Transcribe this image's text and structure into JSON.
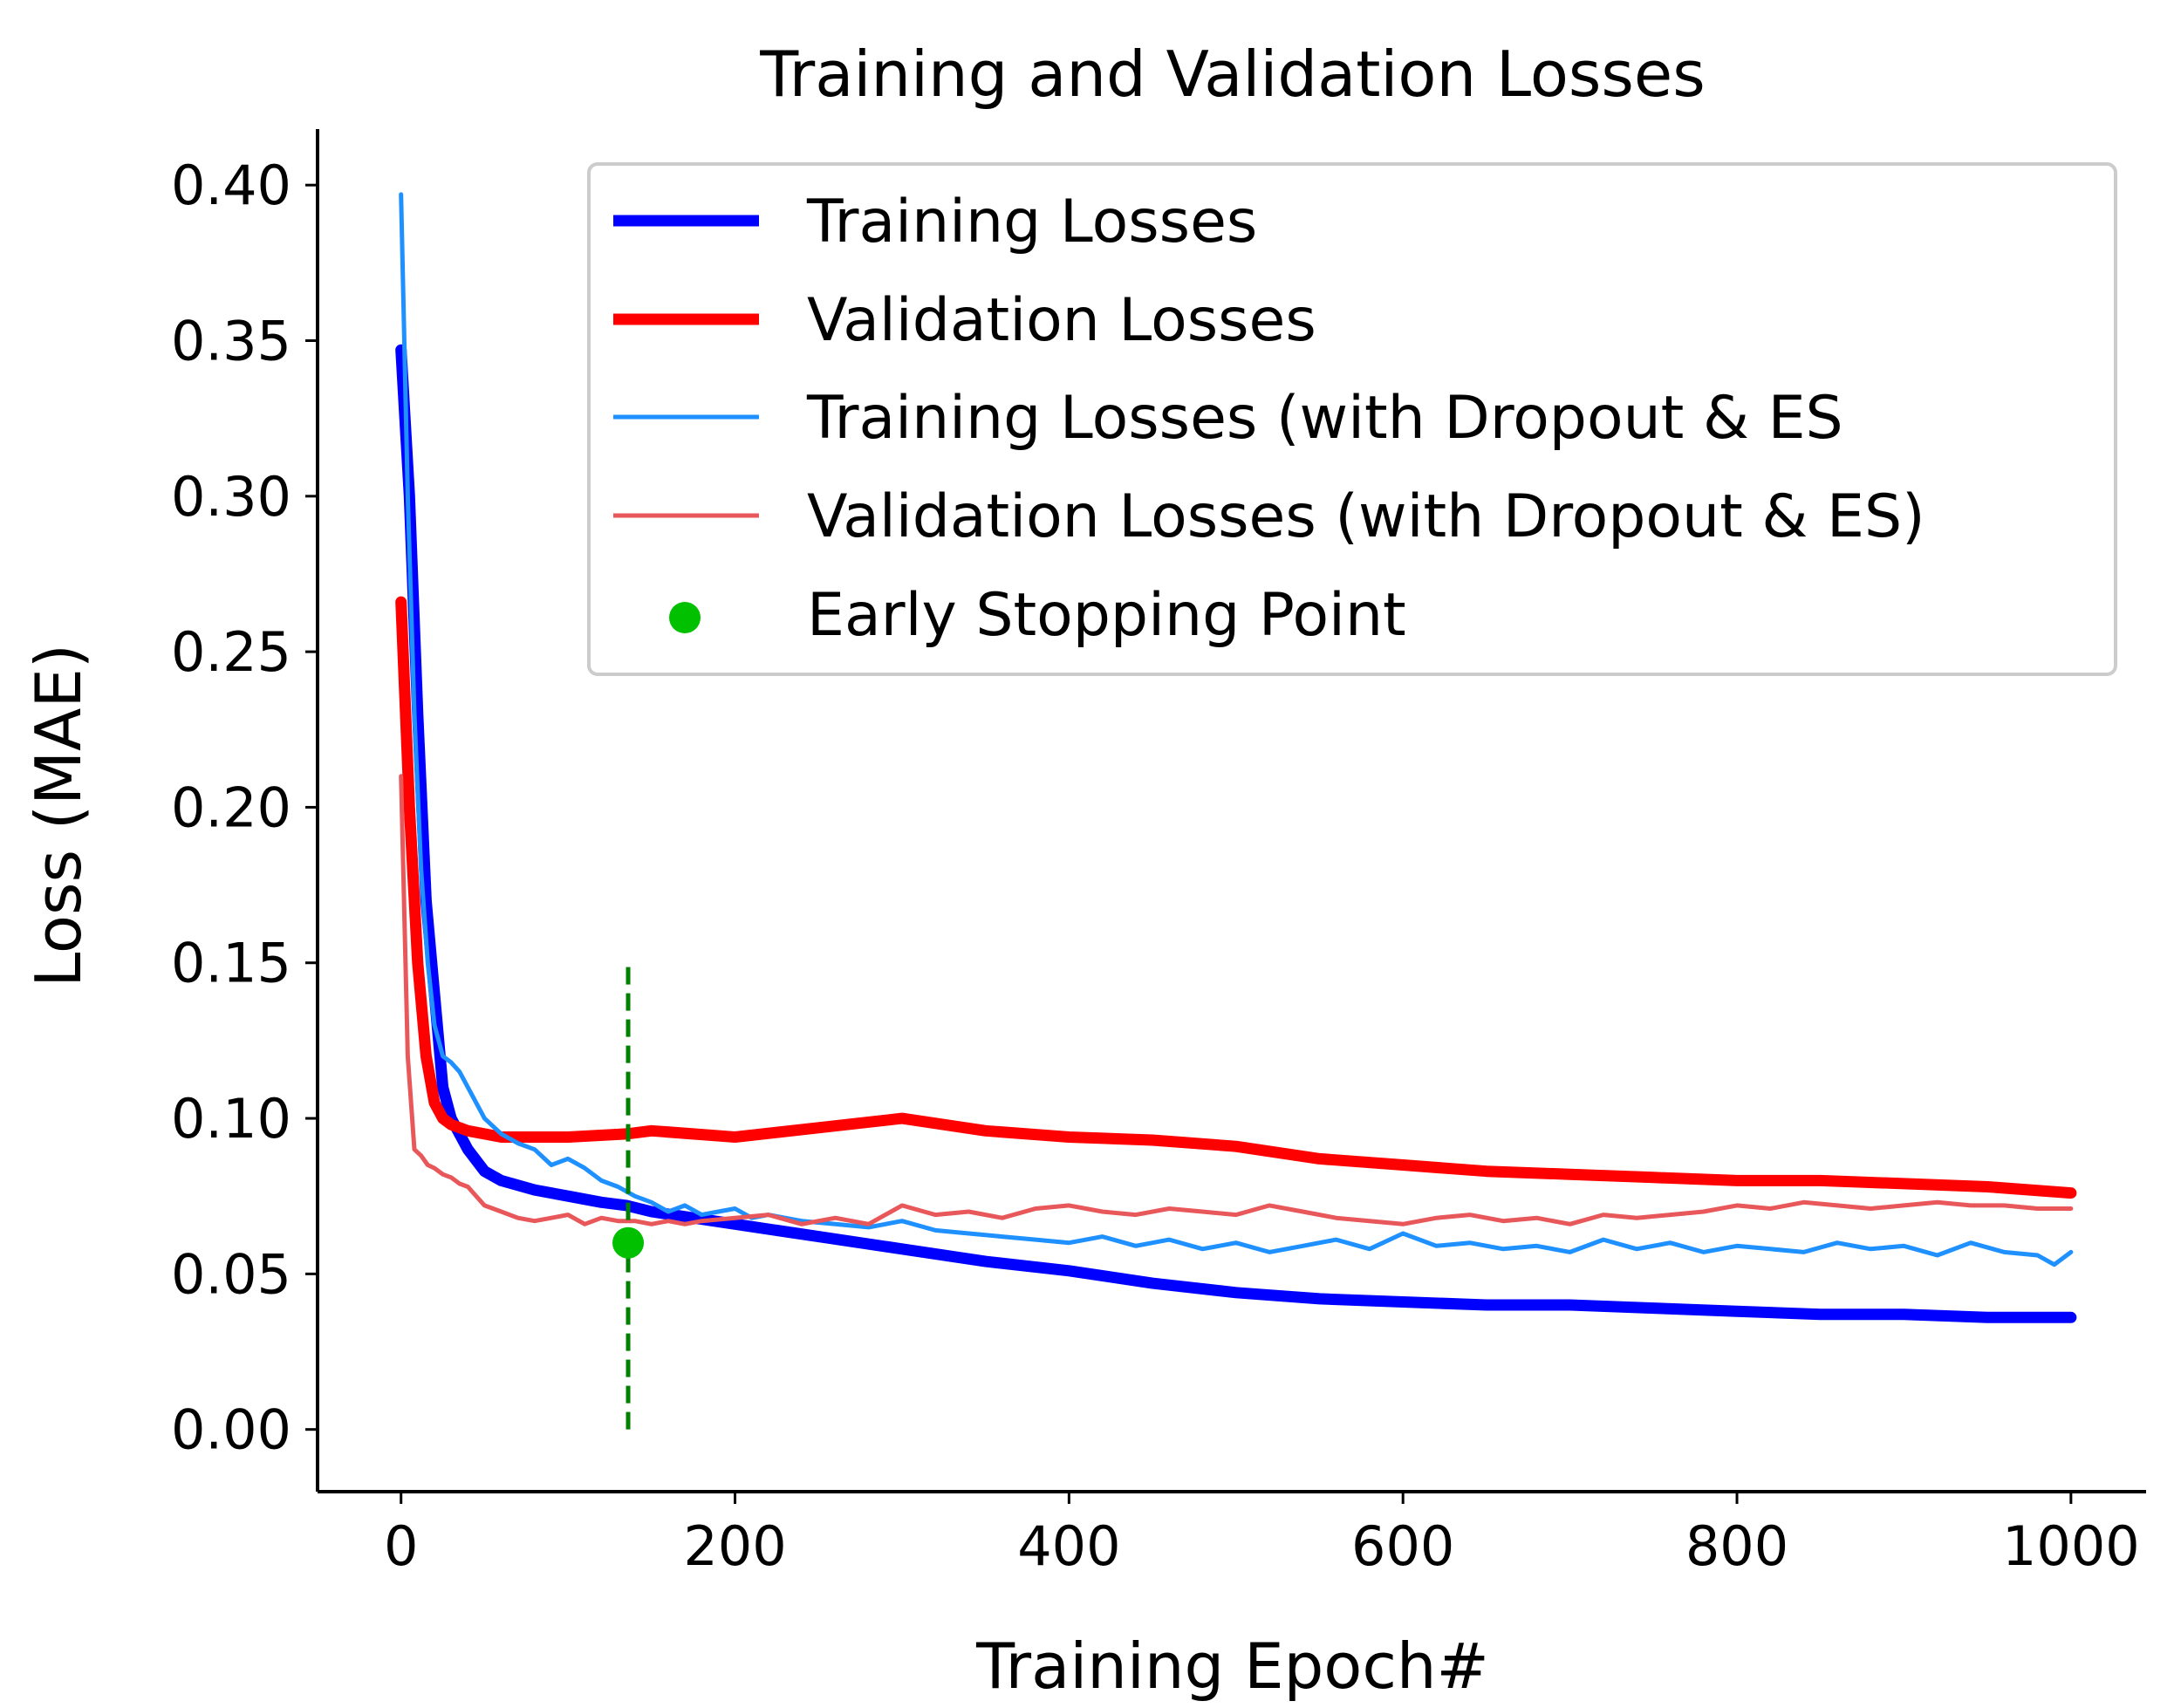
{
  "chart_data": {
    "type": "line",
    "title": "Training and Validation Losses",
    "xlabel": "Training Epoch#",
    "ylabel": "Loss (MAE)",
    "xlim": [
      -50,
      1045
    ],
    "ylim": [
      -0.02,
      0.418
    ],
    "x_ticks": [
      0,
      200,
      400,
      600,
      800,
      1000
    ],
    "x_tick_labels": [
      "0",
      "200",
      "400",
      "600",
      "800",
      "1000"
    ],
    "y_ticks": [
      0.0,
      0.05,
      0.1,
      0.15,
      0.2,
      0.25,
      0.3,
      0.35,
      0.4
    ],
    "y_tick_labels": [
      "0.00",
      "0.05",
      "0.10",
      "0.15",
      "0.20",
      "0.25",
      "0.30",
      "0.35",
      "0.40"
    ],
    "legend_position": "top-right",
    "series": [
      {
        "name": "Training Losses",
        "color": "#0000ff",
        "x": [
          0,
          5,
          10,
          15,
          20,
          25,
          30,
          40,
          50,
          60,
          80,
          100,
          120,
          135,
          150,
          200,
          250,
          300,
          350,
          400,
          450,
          500,
          550,
          600,
          650,
          700,
          750,
          800,
          850,
          900,
          950,
          1000
        ],
        "values": [
          0.347,
          0.3,
          0.23,
          0.17,
          0.14,
          0.11,
          0.1,
          0.09,
          0.083,
          0.08,
          0.077,
          0.075,
          0.073,
          0.072,
          0.07,
          0.066,
          0.062,
          0.058,
          0.054,
          0.051,
          0.047,
          0.044,
          0.042,
          0.041,
          0.04,
          0.04,
          0.039,
          0.038,
          0.037,
          0.037,
          0.036,
          0.036
        ]
      },
      {
        "name": "Validation Losses",
        "color": "#ff0000",
        "x": [
          0,
          5,
          10,
          15,
          20,
          25,
          30,
          40,
          50,
          60,
          80,
          100,
          135,
          150,
          200,
          250,
          300,
          350,
          400,
          450,
          500,
          550,
          600,
          650,
          700,
          750,
          800,
          850,
          900,
          950,
          1000
        ],
        "values": [
          0.266,
          0.2,
          0.15,
          0.12,
          0.105,
          0.1,
          0.098,
          0.096,
          0.095,
          0.094,
          0.094,
          0.094,
          0.095,
          0.096,
          0.094,
          0.097,
          0.1,
          0.096,
          0.094,
          0.093,
          0.091,
          0.087,
          0.085,
          0.083,
          0.082,
          0.081,
          0.08,
          0.08,
          0.079,
          0.078,
          0.076
        ]
      },
      {
        "name": "Training Losses (with Dropout & ES",
        "color": "#1e90ff",
        "x": [
          0,
          4,
          8,
          12,
          16,
          20,
          25,
          30,
          35,
          40,
          50,
          60,
          70,
          80,
          90,
          100,
          110,
          120,
          130,
          140,
          150,
          160,
          170,
          180,
          190,
          200,
          210,
          220,
          240,
          260,
          280,
          300,
          320,
          340,
          360,
          380,
          400,
          420,
          440,
          460,
          480,
          500,
          520,
          540,
          560,
          580,
          600,
          620,
          640,
          660,
          680,
          700,
          720,
          740,
          760,
          780,
          800,
          820,
          840,
          860,
          880,
          900,
          920,
          940,
          960,
          980,
          990,
          1000
        ],
        "values": [
          0.397,
          0.3,
          0.23,
          0.18,
          0.15,
          0.13,
          0.12,
          0.118,
          0.115,
          0.11,
          0.1,
          0.095,
          0.092,
          0.09,
          0.085,
          0.087,
          0.084,
          0.08,
          0.078,
          0.075,
          0.073,
          0.07,
          0.072,
          0.069,
          0.07,
          0.071,
          0.068,
          0.069,
          0.067,
          0.066,
          0.065,
          0.067,
          0.064,
          0.063,
          0.062,
          0.061,
          0.06,
          0.062,
          0.059,
          0.061,
          0.058,
          0.06,
          0.057,
          0.059,
          0.061,
          0.058,
          0.063,
          0.059,
          0.06,
          0.058,
          0.059,
          0.057,
          0.061,
          0.058,
          0.06,
          0.057,
          0.059,
          0.058,
          0.057,
          0.06,
          0.058,
          0.059,
          0.056,
          0.06,
          0.057,
          0.056,
          0.053,
          0.057
        ]
      },
      {
        "name": "Validation Losses (with Dropout & ES)",
        "color": "#e8575a",
        "x": [
          0,
          4,
          8,
          12,
          16,
          20,
          25,
          30,
          35,
          40,
          50,
          60,
          70,
          80,
          90,
          100,
          110,
          120,
          130,
          140,
          150,
          160,
          170,
          180,
          200,
          220,
          240,
          260,
          280,
          300,
          320,
          340,
          360,
          380,
          400,
          420,
          440,
          460,
          480,
          500,
          520,
          540,
          560,
          580,
          600,
          620,
          640,
          660,
          680,
          700,
          720,
          740,
          760,
          780,
          800,
          820,
          840,
          860,
          880,
          900,
          920,
          940,
          960,
          980,
          1000
        ],
        "values": [
          0.21,
          0.12,
          0.09,
          0.088,
          0.085,
          0.084,
          0.082,
          0.081,
          0.079,
          0.078,
          0.072,
          0.07,
          0.068,
          0.067,
          0.068,
          0.069,
          0.066,
          0.068,
          0.067,
          0.067,
          0.066,
          0.067,
          0.066,
          0.067,
          0.068,
          0.069,
          0.066,
          0.068,
          0.066,
          0.072,
          0.069,
          0.07,
          0.068,
          0.071,
          0.072,
          0.07,
          0.069,
          0.071,
          0.07,
          0.069,
          0.072,
          0.07,
          0.068,
          0.067,
          0.066,
          0.068,
          0.069,
          0.067,
          0.068,
          0.066,
          0.069,
          0.068,
          0.069,
          0.07,
          0.072,
          0.071,
          0.073,
          0.072,
          0.071,
          0.072,
          0.073,
          0.072,
          0.072,
          0.071,
          0.071
        ]
      }
    ],
    "early_stopping": {
      "name": "Early Stopping Point",
      "color": "#00c000",
      "x": 136,
      "y": 0.06,
      "vline_color": "#008000",
      "vline_ymin": 0.0,
      "vline_ymax": 0.15
    }
  }
}
